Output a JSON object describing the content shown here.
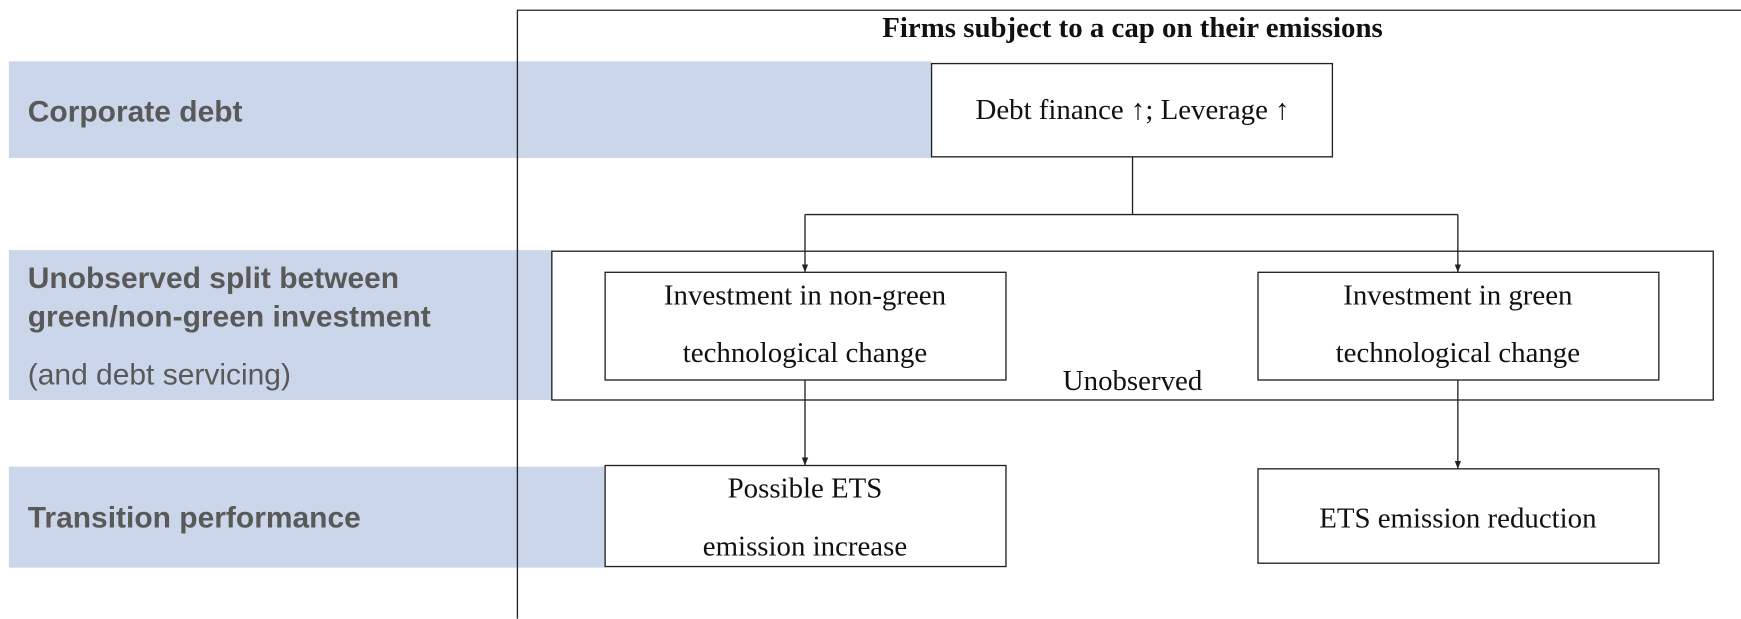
{
  "title": "Firms subject to a cap on their emissions",
  "rows": [
    {
      "label": [
        "Corporate debt"
      ]
    },
    {
      "label": [
        "Unobserved split between",
        "green/non-green investment"
      ],
      "note": "(and debt servicing)"
    },
    {
      "label": [
        "Transition performance"
      ]
    }
  ],
  "group_label": "Unobserved",
  "nodes": [
    {
      "lines": [
        "Debt finance ↑; Leverage ↑"
      ]
    },
    {
      "lines": [
        "Investment in non-green",
        "technological change"
      ]
    },
    {
      "lines": [
        "Investment in green",
        "technological change"
      ]
    },
    {
      "lines": [
        "Possible ETS",
        "emission increase"
      ]
    },
    {
      "lines": [
        "ETS emission reduction"
      ]
    }
  ]
}
